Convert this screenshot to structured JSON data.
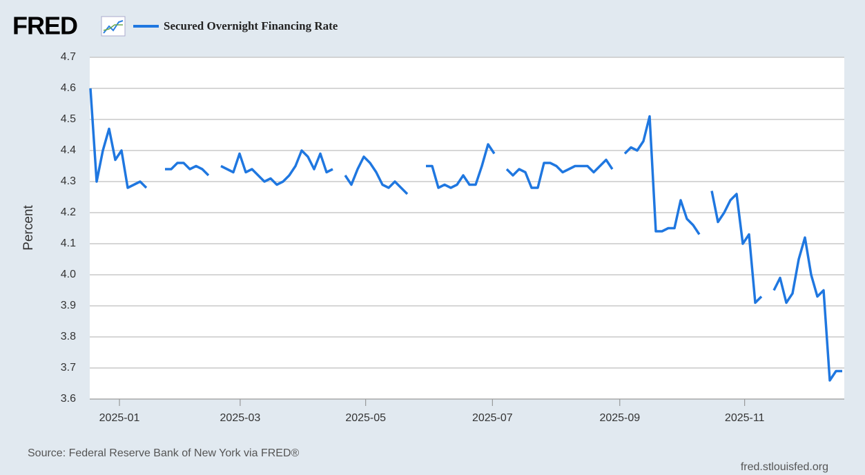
{
  "logo": "FRED",
  "chart_data": {
    "type": "line",
    "y_label": "Percent",
    "series": [
      {
        "name": "Secured Overnight Financing Rate",
        "color": "#1f77e0",
        "values": [
          4.6,
          4.3,
          4.4,
          4.47,
          4.37,
          4.4,
          4.28,
          4.29,
          4.3,
          4.28,
          null,
          null,
          4.34,
          4.34,
          4.36,
          4.36,
          4.34,
          4.35,
          4.34,
          4.32,
          null,
          4.35,
          4.34,
          4.33,
          4.39,
          4.33,
          4.34,
          4.32,
          4.3,
          4.31,
          4.29,
          4.3,
          4.32,
          4.35,
          4.4,
          4.38,
          4.34,
          4.39,
          4.33,
          4.34,
          null,
          4.32,
          4.29,
          4.34,
          4.38,
          4.36,
          4.33,
          4.29,
          4.28,
          4.3,
          4.28,
          4.26,
          null,
          null,
          4.35,
          4.35,
          4.28,
          4.29,
          4.28,
          4.29,
          4.32,
          4.29,
          4.29,
          4.35,
          4.42,
          4.39,
          null,
          4.34,
          4.32,
          4.34,
          4.33,
          4.28,
          4.28,
          4.36,
          4.36,
          4.35,
          4.33,
          4.34,
          4.35,
          4.35,
          4.35,
          4.33,
          4.35,
          4.37,
          4.34,
          null,
          4.39,
          4.41,
          4.4,
          4.43,
          4.51,
          4.14,
          4.14,
          4.15,
          4.15,
          4.24,
          4.18,
          4.16,
          4.13,
          null,
          4.27,
          4.17,
          4.2,
          4.24,
          4.26,
          4.1,
          4.13,
          3.91,
          3.93,
          null,
          3.95,
          3.99,
          3.91,
          3.94,
          4.05,
          4.12,
          4.0,
          3.93,
          3.95,
          3.66,
          3.69,
          3.69
        ]
      }
    ],
    "xlim": [
      0,
      121
    ],
    "xticks": [
      {
        "value": 4.67,
        "label": "2025-01"
      },
      {
        "value": 24.1,
        "label": "2025-03"
      },
      {
        "value": 44.3,
        "label": "2025-05"
      },
      {
        "value": 64.7,
        "label": "2025-07"
      },
      {
        "value": 85.2,
        "label": "2025-09"
      },
      {
        "value": 105.3,
        "label": "2025-11"
      }
    ],
    "ylim": [
      3.6,
      4.7
    ],
    "yticks": [
      3.6,
      3.7,
      3.8,
      3.9,
      {
        "value": 4,
        "label": "4.0"
      },
      4.1,
      4.2,
      4.3,
      4.4,
      4.5,
      4.6,
      4.7
    ],
    "grid": true
  },
  "footer": {
    "source": "Source: Federal Reserve Bank of New York via FRED®",
    "site": "fred.stlouisfed.org"
  }
}
